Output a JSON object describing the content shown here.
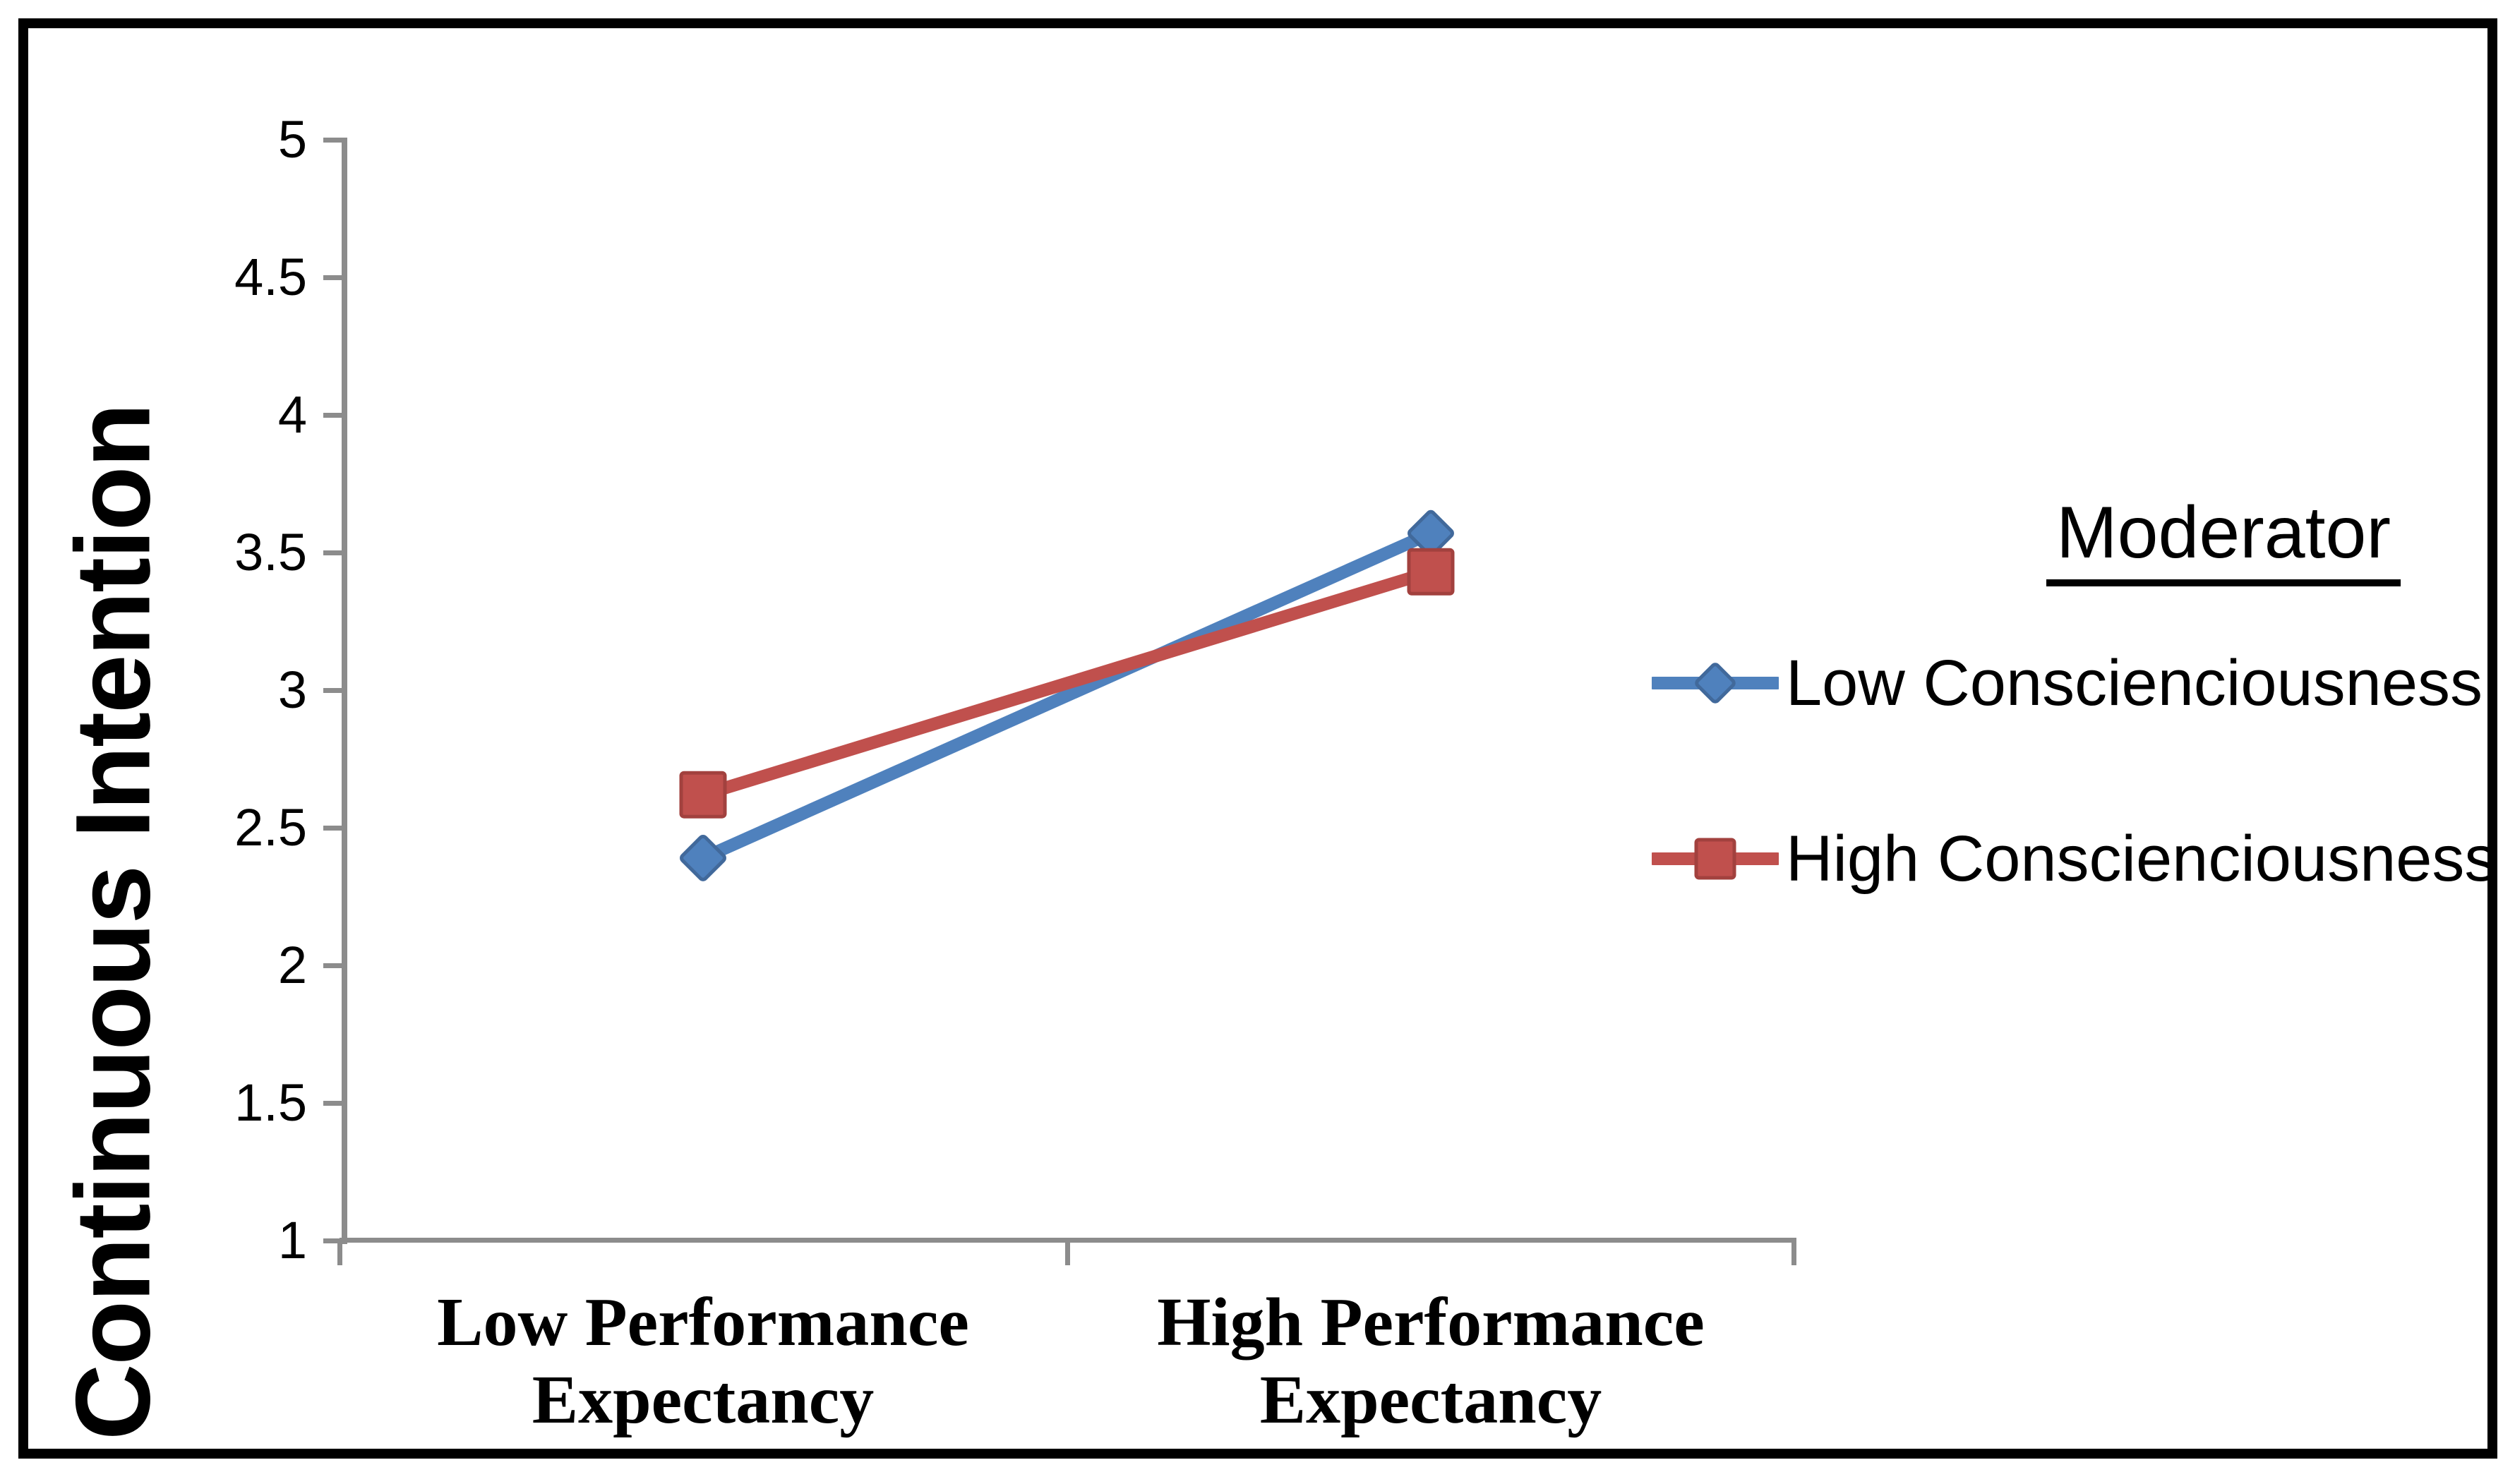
{
  "chart_data": {
    "type": "line",
    "title": "",
    "ylabel": "Continuous Intention",
    "xlabel": "",
    "categories": [
      "Low Performance\nExpectancy",
      "High Performance\nExpectancy"
    ],
    "series": [
      {
        "name": "Low Conscienciousness",
        "marker": "diamond",
        "color": "#4F81BD",
        "edge": "#41699B",
        "values": [
          2.39,
          3.57
        ]
      },
      {
        "name": "High Conscienciousness",
        "marker": "square",
        "color": "#C0504D",
        "edge": "#A2413E",
        "values": [
          2.62,
          3.43
        ]
      }
    ],
    "ylim": [
      1,
      5
    ],
    "yticks": [
      5,
      4.5,
      4,
      3.5,
      3,
      2.5,
      2,
      1.5,
      1
    ],
    "grid": false,
    "legend_title": "Moderator",
    "legend_position": "right",
    "axis_color": "#8C8C8C",
    "text_color": "#000000",
    "background_color": "#FFFFFF",
    "border_color": "#000000"
  }
}
